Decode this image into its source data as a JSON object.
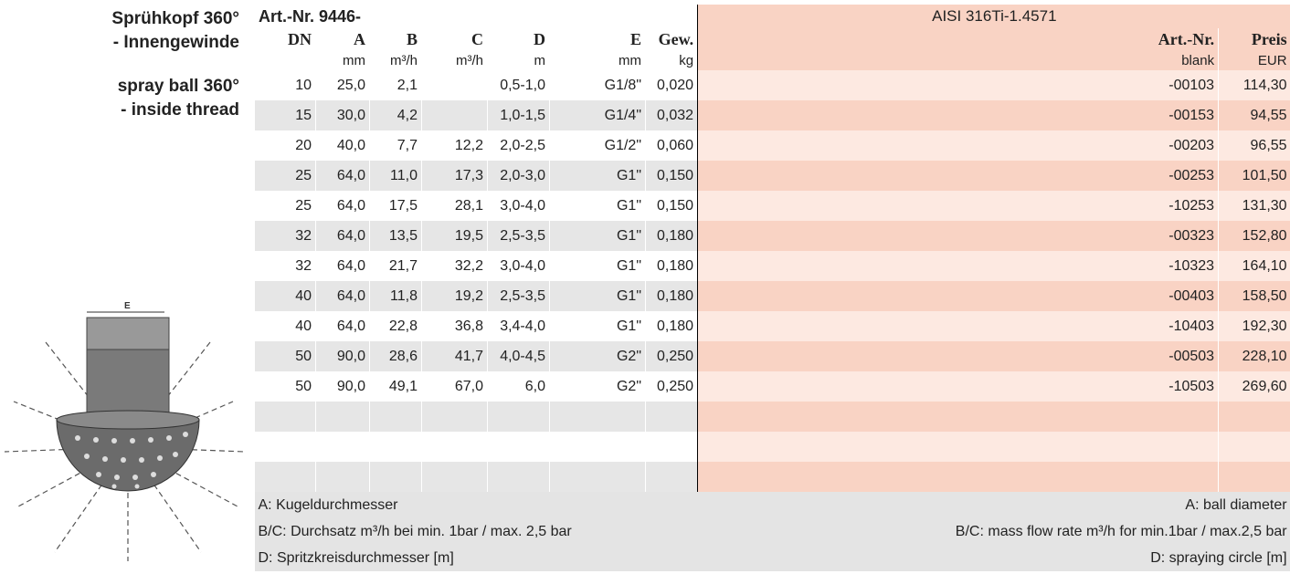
{
  "side_title": {
    "de_line1": "Sprühkopf 360°",
    "de_line2": "- Innengewinde",
    "en_line1": "spray ball 360°",
    "en_line2": "- inside thread"
  },
  "table": {
    "title": "Art.-Nr. 9446-",
    "material": "AISI 316Ti-1.4571",
    "header": [
      "DN",
      "A",
      "B",
      "C",
      "D",
      "E",
      "Gew.",
      "Art.-Nr.",
      "Preis"
    ],
    "units": [
      null,
      "mm",
      "m³/h",
      "m³/h",
      "m",
      "mm",
      "kg",
      "blank",
      "EUR"
    ],
    "rows": [
      [
        "10",
        "25,0",
        "2,1",
        null,
        "0,5-1,0",
        "G1/8\"",
        "0,020",
        "-00103",
        "114,30"
      ],
      [
        "15",
        "30,0",
        "4,2",
        null,
        "1,0-1,5",
        "G1/4\"",
        "0,032",
        "-00153",
        "94,55"
      ],
      [
        "20",
        "40,0",
        "7,7",
        "12,2",
        "2,0-2,5",
        "G1/2\"",
        "0,060",
        "-00203",
        "96,55"
      ],
      [
        "25",
        "64,0",
        "11,0",
        "17,3",
        "2,0-3,0",
        "G1\"",
        "0,150",
        "-00253",
        "101,50"
      ],
      [
        "25",
        "64,0",
        "17,5",
        "28,1",
        "3,0-4,0",
        "G1\"",
        "0,150",
        "-10253",
        "131,30"
      ],
      [
        "32",
        "64,0",
        "13,5",
        "19,5",
        "2,5-3,5",
        "G1\"",
        "0,180",
        "-00323",
        "152,80"
      ],
      [
        "32",
        "64,0",
        "21,7",
        "32,2",
        "3,0-4,0",
        "G1\"",
        "0,180",
        "-10323",
        "164,10"
      ],
      [
        "40",
        "64,0",
        "11,8",
        "19,2",
        "2,5-3,5",
        "G1\"",
        "0,180",
        "-00403",
        "158,50"
      ],
      [
        "40",
        "64,0",
        "22,8",
        "36,8",
        "3,4-4,0",
        "G1\"",
        "0,180",
        "-10403",
        "192,30"
      ],
      [
        "50",
        "90,0",
        "28,6",
        "41,7",
        "4,0-4,5",
        "G2\"",
        "0,250",
        "-00503",
        "228,10"
      ],
      [
        "50",
        "90,0",
        "49,1",
        "67,0",
        "6,0",
        "G2\"",
        "0,250",
        "-10503",
        "269,60"
      ]
    ],
    "notes_de": [
      "A: Kugeldurchmesser",
      "B/C: Durchsatz m³/h bei min. 1bar / max. 2,5 bar",
      "D: Spritzkreisdurchmesser [m]"
    ],
    "notes_en": [
      "A: ball diameter",
      "B/C: mass flow rate m³/h for min.1bar / max.2,5 bar",
      "D: spraying circle [m]"
    ]
  }
}
